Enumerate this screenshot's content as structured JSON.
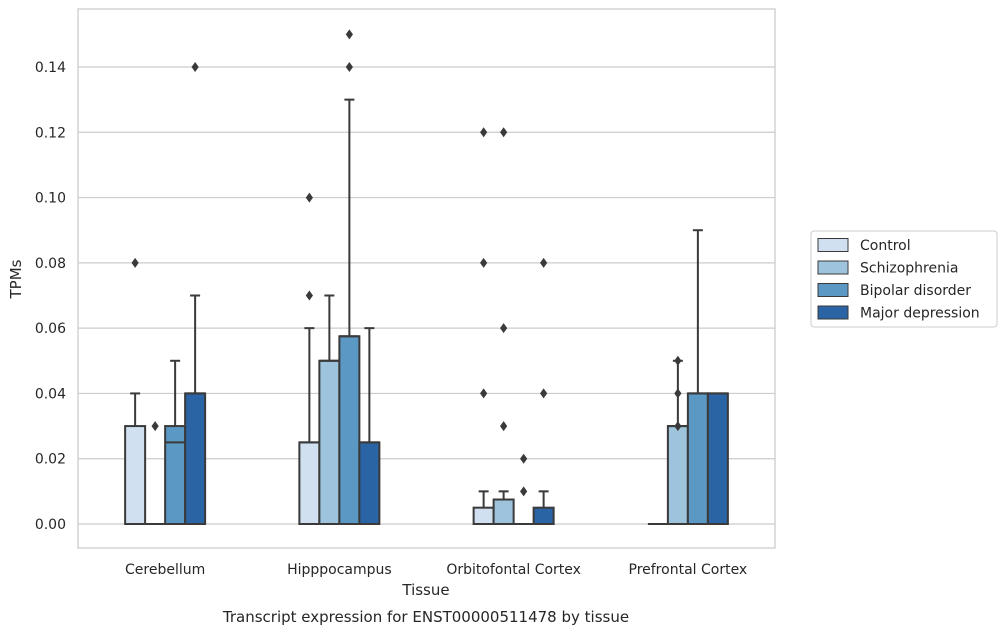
{
  "caption": "Transcript expression for ENST00000511478 by tissue",
  "chart_data": {
    "type": "box",
    "xlabel": "Tissue",
    "ylabel": "TPMs",
    "ylim": [
      -0.007,
      0.157
    ],
    "yticks": [
      0.0,
      0.02,
      0.04,
      0.06,
      0.08,
      0.1,
      0.12,
      0.14
    ],
    "ytick_labels": [
      "0.00",
      "0.02",
      "0.04",
      "0.06",
      "0.08",
      "0.10",
      "0.12",
      "0.14"
    ],
    "grid": "horizontal",
    "legend_position": "right",
    "categories": [
      "Cerebellum",
      "Hipppocampus",
      "Orbitofontal Cortex",
      "Prefrontal Cortex"
    ],
    "series": [
      {
        "name": "Control",
        "color": "#d0e0f0",
        "boxes": [
          {
            "q1": 0.0,
            "median": 0.0,
            "q3": 0.03,
            "whisker_low": 0.0,
            "whisker_high": 0.04,
            "outliers": [
              0.08
            ]
          },
          {
            "q1": 0.0,
            "median": 0.025,
            "q3": 0.025,
            "whisker_low": 0.0,
            "whisker_high": 0.06,
            "outliers": [
              0.07,
              0.1
            ]
          },
          {
            "q1": 0.0,
            "median": 0.0,
            "q3": 0.005,
            "whisker_low": 0.0,
            "whisker_high": 0.01,
            "outliers": [
              0.04,
              0.08,
              0.12
            ]
          },
          {
            "q1": 0.0,
            "median": 0.0,
            "q3": 0.0,
            "whisker_low": 0.0,
            "whisker_high": 0.0,
            "outliers": []
          }
        ]
      },
      {
        "name": "Schizophrenia",
        "color": "#9dc4dc",
        "boxes": [
          {
            "q1": 0.0,
            "median": 0.0,
            "q3": 0.0,
            "whisker_low": 0.0,
            "whisker_high": 0.0,
            "outliers": [
              0.03
            ]
          },
          {
            "q1": 0.0,
            "median": 0.05,
            "q3": 0.05,
            "whisker_low": 0.0,
            "whisker_high": 0.07,
            "outliers": []
          },
          {
            "q1": 0.0,
            "median": 0.0,
            "q3": 0.0075,
            "whisker_low": 0.0,
            "whisker_high": 0.01,
            "outliers": [
              0.03,
              0.06,
              0.12
            ]
          },
          {
            "q1": 0.0,
            "median": 0.03,
            "q3": 0.03,
            "whisker_low": 0.0,
            "whisker_high": 0.05,
            "outliers": [
              0.03,
              0.04,
              0.05
            ]
          }
        ]
      },
      {
        "name": "Bipolar disorder",
        "color": "#5b98c4",
        "boxes": [
          {
            "q1": 0.0,
            "median": 0.025,
            "q3": 0.03,
            "whisker_low": 0.0,
            "whisker_high": 0.05,
            "outliers": []
          },
          {
            "q1": 0.0,
            "median": 0.0575,
            "q3": 0.0575,
            "whisker_low": 0.0,
            "whisker_high": 0.13,
            "outliers": [
              0.14,
              0.15
            ]
          },
          {
            "q1": 0.0,
            "median": 0.0,
            "q3": 0.0,
            "whisker_low": 0.0,
            "whisker_high": 0.0,
            "outliers": [
              0.01,
              0.02
            ]
          },
          {
            "q1": 0.0,
            "median": 0.04,
            "q3": 0.04,
            "whisker_low": 0.0,
            "whisker_high": 0.09,
            "outliers": []
          }
        ]
      },
      {
        "name": "Major depression",
        "color": "#2b64a4",
        "boxes": [
          {
            "q1": 0.0,
            "median": 0.04,
            "q3": 0.04,
            "whisker_low": 0.0,
            "whisker_high": 0.07,
            "outliers": [
              0.14
            ]
          },
          {
            "q1": 0.0,
            "median": 0.025,
            "q3": 0.025,
            "whisker_low": 0.0,
            "whisker_high": 0.06,
            "outliers": []
          },
          {
            "q1": 0.0,
            "median": 0.0,
            "q3": 0.005,
            "whisker_low": 0.0,
            "whisker_high": 0.01,
            "outliers": [
              0.04,
              0.08
            ]
          },
          {
            "q1": 0.0,
            "median": 0.04,
            "q3": 0.04,
            "whisker_low": 0.0,
            "whisker_high": 0.04,
            "outliers": []
          }
        ]
      }
    ]
  }
}
